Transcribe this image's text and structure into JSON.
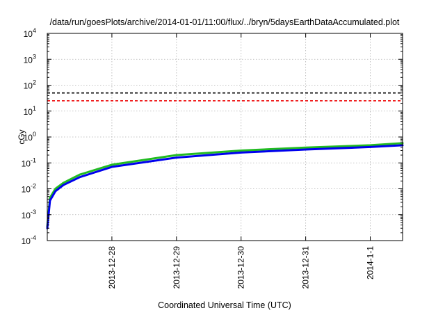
{
  "chart_data": {
    "type": "line",
    "title": "/data/run/goesPlots/archive/2014-01-01/11:00/flux/../bryn/5daysEarthDataAccumulated.plot",
    "xlabel": "Coordinated Universal Time (UTC)",
    "ylabel": "cGy",
    "y_scale": "log",
    "ylim": [
      0.0001,
      10000
    ],
    "y_ticks": [
      {
        "base": "10",
        "exp": "-4",
        "value": 0.0001
      },
      {
        "base": "10",
        "exp": "-3",
        "value": 0.001
      },
      {
        "base": "10",
        "exp": "-2",
        "value": 0.01
      },
      {
        "base": "10",
        "exp": "-1",
        "value": 0.1
      },
      {
        "base": "10",
        "exp": "0",
        "value": 1
      },
      {
        "base": "10",
        "exp": "1",
        "value": 10
      },
      {
        "base": "10",
        "exp": "2",
        "value": 100
      },
      {
        "base": "10",
        "exp": "3",
        "value": 1000
      },
      {
        "base": "10",
        "exp": "4",
        "value": 10000
      }
    ],
    "xlim": [
      "2013-12-27T00:00",
      "2014-01-01T12:00"
    ],
    "x_ticks": [
      {
        "label": "2013-12-28",
        "value": "2013-12-28T00:00"
      },
      {
        "label": "2013-12-29",
        "value": "2013-12-29T00:00"
      },
      {
        "label": "2013-12-30",
        "value": "2013-12-30T00:00"
      },
      {
        "label": "2013-12-31",
        "value": "2013-12-31T00:00"
      },
      {
        "label": "2014-1-1",
        "value": "2014-01-01T00:00"
      }
    ],
    "grid": true,
    "legend": "none",
    "series": [
      {
        "color": "#22bb22",
        "line_width": 3,
        "points": [
          [
            "2013-12-27T00:00",
            0.00035
          ],
          [
            "2013-12-27T01:00",
            0.0045
          ],
          [
            "2013-12-27T03:00",
            0.01
          ],
          [
            "2013-12-27T06:00",
            0.017
          ],
          [
            "2013-12-27T12:00",
            0.035
          ],
          [
            "2013-12-28T00:00",
            0.085
          ],
          [
            "2013-12-29T00:00",
            0.2
          ],
          [
            "2013-12-30T00:00",
            0.3
          ],
          [
            "2013-12-31T00:00",
            0.39
          ],
          [
            "2014-01-01T00:00",
            0.48
          ],
          [
            "2014-01-01T12:00",
            0.58
          ]
        ]
      },
      {
        "color": "#0000ee",
        "line_width": 3,
        "points": [
          [
            "2013-12-27T00:00",
            0.0003
          ],
          [
            "2013-12-27T01:00",
            0.0035
          ],
          [
            "2013-12-27T03:00",
            0.008
          ],
          [
            "2013-12-27T06:00",
            0.014
          ],
          [
            "2013-12-27T12:00",
            0.028
          ],
          [
            "2013-12-28T00:00",
            0.07
          ],
          [
            "2013-12-29T00:00",
            0.16
          ],
          [
            "2013-12-30T00:00",
            0.25
          ],
          [
            "2013-12-31T00:00",
            0.33
          ],
          [
            "2014-01-01T00:00",
            0.41
          ],
          [
            "2014-01-01T12:00",
            0.48
          ]
        ]
      }
    ],
    "thresholds": [
      {
        "value": 50,
        "color": "#000000",
        "dash": "dashed"
      },
      {
        "value": 25,
        "color": "#ee0000",
        "dash": "dashed"
      }
    ]
  }
}
